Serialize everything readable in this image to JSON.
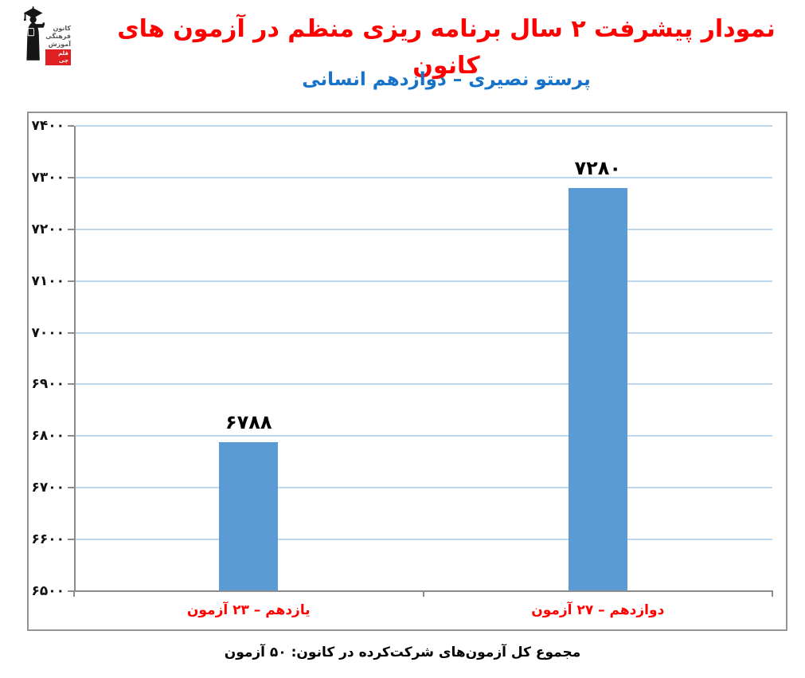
{
  "logo": {
    "org_lines": [
      "کانون",
      "فرهنگی",
      "آموزش"
    ],
    "badge": "قلم چی"
  },
  "chart_data": {
    "type": "bar",
    "title": "نمودار پیشرفت ۲ سال برنامه ریزی منظم در آزمون های کانون",
    "subtitle": "پرستو نصیری – دوازدهم انسانی",
    "categories": [
      "یازدهم – ۲۳ آزمون",
      "دوازدهم – ۲۷ آزمون"
    ],
    "values": [
      6788,
      7280
    ],
    "value_labels": [
      "۶۷۸۸",
      "۷۲۸۰"
    ],
    "xlabel": "",
    "ylabel": "",
    "ylim": [
      6500,
      7400
    ],
    "ytick_step": 100,
    "yticks": [
      {
        "value": 6500,
        "label": "۶۵۰۰"
      },
      {
        "value": 6600,
        "label": "۶۶۰۰"
      },
      {
        "value": 6700,
        "label": "۶۷۰۰"
      },
      {
        "value": 6800,
        "label": "۶۸۰۰"
      },
      {
        "value": 6900,
        "label": "۶۹۰۰"
      },
      {
        "value": 7000,
        "label": "۷۰۰۰"
      },
      {
        "value": 7100,
        "label": "۷۱۰۰"
      },
      {
        "value": 7200,
        "label": "۷۲۰۰"
      },
      {
        "value": 7300,
        "label": "۷۳۰۰"
      },
      {
        "value": 7400,
        "label": "۷۴۰۰"
      }
    ],
    "legend": "none",
    "grid": "horizontal",
    "footnote": "مجموع کل آزمون‌های شرکت‌کرده در کانون: ۵۰ آزمون",
    "colors": {
      "title": "#FF0000",
      "subtitle": "#1673C8",
      "bar": "#5B9BD5",
      "gridline": "#BDD7EE",
      "axis": "#8C8C8C",
      "frame_border": "#949494",
      "ytick_label": "#111111",
      "value_label": "#000000",
      "category_label": "#FF0000"
    }
  }
}
